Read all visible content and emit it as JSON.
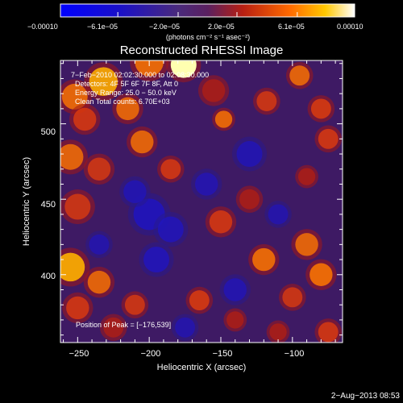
{
  "chart_data": {
    "type": "heatmap",
    "title": "Reconstructed RHESSI Image",
    "xlabel": "Heliocentric X (arcsec)",
    "ylabel": "Heliocentric Y (arcsec)",
    "xlim": [
      -262,
      -65
    ],
    "ylim": [
      355,
      542
    ],
    "x_ticks": [
      {
        "value": -250,
        "label": "−250"
      },
      {
        "value": -200,
        "label": "−200"
      },
      {
        "value": -150,
        "label": "−150"
      },
      {
        "value": -100,
        "label": "−100"
      }
    ],
    "y_ticks": [
      {
        "value": 400,
        "label": "400"
      },
      {
        "value": 450,
        "label": "450"
      },
      {
        "value": 500,
        "label": "500"
      }
    ],
    "colorbar": {
      "range": [
        -0.0001,
        0.0001
      ],
      "tick_labels": [
        "−0.00010",
        "−6.1e−05",
        "−2.0e−05",
        "2.0e−05",
        "6.1e−05",
        "0.00010"
      ],
      "tick_values": [
        -0.0001,
        -6.1e-05,
        -2e-05,
        2e-05,
        6.1e-05,
        0.0001
      ],
      "units_label": "(photons cm⁻² s⁻¹ asec⁻²)"
    },
    "annotations": [
      "7−Feb−2010 02:02:30.000 to 02:08:30.000",
      "Detectors: 4F 5F 6F 7F 8F, Att 0",
      "Energy Range: 25.0 − 50.0 keV",
      "Clean    Total counts: 6.70E+03"
    ],
    "peak_label": "Position of Peak = [−176,539]",
    "peak": [
      -176,
      539
    ],
    "blobs": [
      {
        "x": -176,
        "y": 539,
        "amp": 1.0,
        "r": 9
      },
      {
        "x": -200,
        "y": 541,
        "amp": 0.65,
        "r": 10
      },
      {
        "x": -232,
        "y": 528,
        "amp": 0.75,
        "r": 10
      },
      {
        "x": -252,
        "y": 518,
        "amp": 0.6,
        "r": 9
      },
      {
        "x": -245,
        "y": 503,
        "amp": 0.45,
        "r": 8
      },
      {
        "x": -215,
        "y": 510,
        "amp": 0.55,
        "r": 8
      },
      {
        "x": -155,
        "y": 522,
        "amp": 0.35,
        "r": 8
      },
      {
        "x": -148,
        "y": 503,
        "amp": 0.6,
        "r": 6
      },
      {
        "x": -118,
        "y": 515,
        "amp": 0.4,
        "r": 7
      },
      {
        "x": -95,
        "y": 532,
        "amp": 0.55,
        "r": 7
      },
      {
        "x": -80,
        "y": 510,
        "amp": 0.5,
        "r": 7
      },
      {
        "x": -75,
        "y": 490,
        "amp": 0.45,
        "r": 7
      },
      {
        "x": -90,
        "y": 465,
        "amp": 0.35,
        "r": 6
      },
      {
        "x": -255,
        "y": 478,
        "amp": 0.55,
        "r": 9
      },
      {
        "x": -235,
        "y": 470,
        "amp": 0.4,
        "r": 8
      },
      {
        "x": -205,
        "y": 488,
        "amp": 0.55,
        "r": 8
      },
      {
        "x": -185,
        "y": 470,
        "amp": 0.45,
        "r": 7
      },
      {
        "x": -250,
        "y": 445,
        "amp": 0.4,
        "r": 9
      },
      {
        "x": -255,
        "y": 405,
        "amp": 0.8,
        "r": 10
      },
      {
        "x": -235,
        "y": 395,
        "amp": 0.55,
        "r": 8
      },
      {
        "x": -210,
        "y": 380,
        "amp": 0.4,
        "r": 7
      },
      {
        "x": -250,
        "y": 378,
        "amp": 0.45,
        "r": 8
      },
      {
        "x": -225,
        "y": 365,
        "amp": 0.35,
        "r": 7
      },
      {
        "x": -165,
        "y": 383,
        "amp": 0.5,
        "r": 7
      },
      {
        "x": -140,
        "y": 370,
        "amp": 0.35,
        "r": 6
      },
      {
        "x": -150,
        "y": 435,
        "amp": 0.45,
        "r": 8
      },
      {
        "x": -130,
        "y": 450,
        "amp": 0.35,
        "r": 7
      },
      {
        "x": -120,
        "y": 410,
        "amp": 0.65,
        "r": 8
      },
      {
        "x": -90,
        "y": 420,
        "amp": 0.55,
        "r": 8
      },
      {
        "x": -80,
        "y": 400,
        "amp": 0.7,
        "r": 8
      },
      {
        "x": -100,
        "y": 385,
        "amp": 0.4,
        "r": 7
      },
      {
        "x": -75,
        "y": 362,
        "amp": 0.45,
        "r": 7
      },
      {
        "x": -110,
        "y": 362,
        "amp": 0.35,
        "r": 6
      },
      {
        "x": -200,
        "y": 440,
        "amp": -0.7,
        "r": 11
      },
      {
        "x": -185,
        "y": 430,
        "amp": -0.55,
        "r": 9
      },
      {
        "x": -195,
        "y": 410,
        "amp": -0.6,
        "r": 9
      },
      {
        "x": -210,
        "y": 455,
        "amp": -0.45,
        "r": 8
      },
      {
        "x": -130,
        "y": 480,
        "amp": -0.45,
        "r": 9
      },
      {
        "x": -140,
        "y": 390,
        "amp": -0.4,
        "r": 8
      },
      {
        "x": -160,
        "y": 460,
        "amp": -0.35,
        "r": 8
      },
      {
        "x": -175,
        "y": 365,
        "amp": -0.3,
        "r": 7
      },
      {
        "x": -235,
        "y": 420,
        "amp": -0.3,
        "r": 7
      },
      {
        "x": -110,
        "y": 440,
        "amp": -0.3,
        "r": 7
      }
    ]
  },
  "footer": {
    "date": "2−Aug−2013 08:53"
  }
}
